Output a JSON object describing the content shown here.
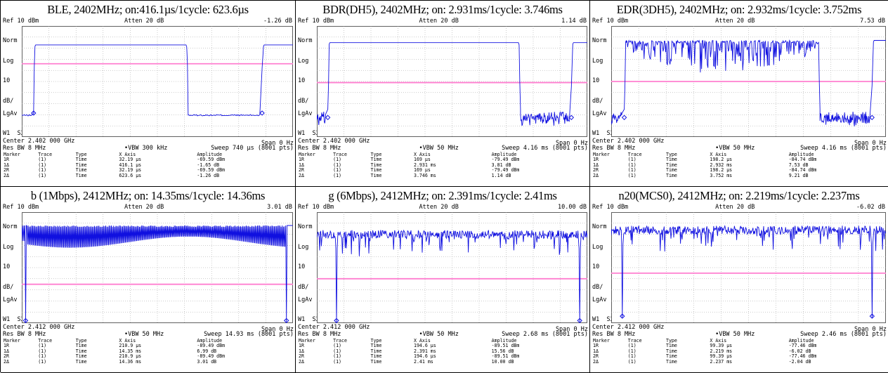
{
  "panels": [
    {
      "caption": "BLE, 2402MHz; on:416.1µs/1cycle: 623.6µs",
      "ref_level": "Ref 10 dBm",
      "atten": "Atten 20 dB",
      "marker_amp": "-1.26 dB",
      "norm": "Norm",
      "log": "Log",
      "scale_div": "10",
      "scale_unit": "dB/",
      "lgav": "LgAv",
      "w1s2": "W1  S2",
      "center": "Center 2.402 000 GHz",
      "span": "Span 0 Hz",
      "res_bw": "Res BW 8 MHz",
      "vbw": "•VBW 300 kHz",
      "sweep": "Sweep 740 µs (8001 pts)",
      "table_header": [
        "Marker",
        "Trace",
        "Type",
        "X Axis",
        "Amplitude"
      ],
      "markers": [
        [
          "1R",
          "(1)",
          "Time",
          "32.19 µs",
          "-69.59 dBm"
        ],
        [
          "1Δ",
          "(1)",
          "Time",
          "416.1 µs",
          "-1.65 dB"
        ],
        [
          "2R",
          "(1)",
          "Time",
          "32.19 µs",
          "-69.59 dBm"
        ],
        [
          "2Δ",
          "(1)",
          "Time",
          "623.6 µs",
          "-1.26 dB"
        ]
      ],
      "chart_data": {
        "type": "line",
        "signal": "burst",
        "x_unit": "µs",
        "x_range": [
          0,
          740
        ],
        "y_unit": "dBm",
        "y_range": [
          -90,
          10
        ],
        "on_time": 416.1,
        "cycle": 623.6,
        "first_edge": 32.19,
        "on_level": -7,
        "off_level": -71,
        "threshold_level": -24,
        "off_noise": 2
      }
    },
    {
      "caption": "BDR(DH5), 2402MHz; on: 2.931ms/1cycle: 3.746ms",
      "ref_level": "Ref 10 dBm",
      "atten": "Atten 20 dB",
      "marker_amp": "1.14 dB",
      "norm": "Norm",
      "log": "Log",
      "scale_div": "10",
      "scale_unit": "dB/",
      "lgav": "LgAv",
      "w1s2": "W1  S2",
      "center": "Center 2.402 000 GHz",
      "span": "Span 0 Hz",
      "res_bw": "Res BW 8 MHz",
      "vbw": "•VBW 50 MHz",
      "sweep": "Sweep 4.16 ms (8001 pts)",
      "table_header": [
        "Marker",
        "Trace",
        "Type",
        "X Axis",
        "Amplitude"
      ],
      "markers": [
        [
          "1R",
          "(1)",
          "Time",
          "169 µs",
          "-79.49 dBm"
        ],
        [
          "1Δ",
          "(1)",
          "Time",
          "2.931 ms",
          "3.81 dB"
        ],
        [
          "2R",
          "(1)",
          "Time",
          "169 µs",
          "-79.49 dBm"
        ],
        [
          "2Δ",
          "(1)",
          "Time",
          "3.746 ms",
          "1.14 dB"
        ]
      ],
      "chart_data": {
        "type": "line",
        "signal": "burst",
        "x_unit": "ms",
        "x_range": [
          0,
          4.16
        ],
        "y_unit": "dBm",
        "y_range": [
          -90,
          10
        ],
        "on_time": 2.931,
        "cycle": 3.746,
        "first_edge": 0.169,
        "on_level": -5,
        "off_level": -75,
        "threshold_level": -41,
        "off_noise": 10
      }
    },
    {
      "caption": "EDR(3DH5), 2402MHz; on: 2.932ms/1cycle: 3.752ms",
      "ref_level": "Ref 10 dBm",
      "atten": "Atten 20 dB",
      "marker_amp": "7.53 dB",
      "norm": "Norm",
      "log": "Log",
      "scale_div": "10",
      "scale_unit": "dB/",
      "lgav": "LgAv",
      "w1s2": "W1  S2",
      "center": "Center 2.402 000 GHz",
      "span": "Span 0 Hz",
      "res_bw": "Res BW 8 MHz",
      "vbw": "•VBW 50 MHz",
      "sweep": "Sweep 4.16 ms (8001 pts)",
      "table_header": [
        "Marker",
        "Trace",
        "Type",
        "X Axis",
        "Amplitude"
      ],
      "markers": [
        [
          "1R",
          "(1)",
          "Time",
          "198.2 µs",
          "-84.74 dBm"
        ],
        [
          "1Δ",
          "(1)",
          "Time",
          "2.932 ms",
          "7.53 dB"
        ],
        [
          "2R",
          "(1)",
          "Time",
          "198.2 µs",
          "-84.74 dBm"
        ],
        [
          "2Δ",
          "(1)",
          "Time",
          "3.752 ms",
          "9.21 dB"
        ]
      ],
      "chart_data": {
        "type": "line",
        "signal": "burst-noisy",
        "x_unit": "ms",
        "x_range": [
          0,
          4.16
        ],
        "y_unit": "dBm",
        "y_range": [
          -90,
          10
        ],
        "on_time": 2.932,
        "cycle": 3.752,
        "first_edge": 0.198,
        "on_level": -3,
        "off_level": -75,
        "threshold_level": -40,
        "off_noise": 10
      }
    },
    {
      "caption": "b (1Mbps), 2412MHz; on: 14.35ms/1cycle: 14.36ms",
      "ref_level": "Ref 10 dBm",
      "atten": "Atten 20 dB",
      "marker_amp": "3.01 dB",
      "norm": "Norm",
      "log": "Log",
      "scale_div": "10",
      "scale_unit": "dB/",
      "lgav": "LgAv",
      "w1s2": "W1  S2",
      "center": "Center 2.412 000 GHz",
      "span": "Span 0 Hz",
      "res_bw": "Res BW 8 MHz",
      "vbw": "•VBW 50 MHz",
      "sweep": "Sweep 14.93 ms (8001 pts)",
      "table_header": [
        "Marker",
        "Trace",
        "Type",
        "X Axis",
        "Amplitude"
      ],
      "markers": [
        [
          "1R",
          "(1)",
          "Time",
          "210.9 µs",
          "-89.49 dBm"
        ],
        [
          "1Δ",
          "(1)",
          "Time",
          "14.35 ms",
          "6.99 dB"
        ],
        [
          "2R",
          "(1)",
          "Time",
          "210.9 µs",
          "-89.49 dBm"
        ],
        [
          "2Δ",
          "(1)",
          "Time",
          "14.36 ms",
          "3.01 dB"
        ]
      ],
      "chart_data": {
        "type": "line",
        "signal": "continuous-band",
        "x_unit": "ms",
        "x_range": [
          0,
          14.93
        ],
        "y_unit": "dBm",
        "y_range": [
          -90,
          10
        ],
        "on_time": 14.35,
        "cycle": 14.36,
        "first_edge": 0.2109,
        "on_level": -5,
        "off_level": -89,
        "threshold_level": -55,
        "band_top": -2,
        "band_bottom": -22
      }
    },
    {
      "caption": "g (6Mbps), 2412MHz; on: 2.391ms/1cycle: 2.41ms",
      "ref_level": "Ref 10 dBm",
      "atten": "Atten 20 dB",
      "marker_amp": "10.00 dB",
      "norm": "Norm",
      "log": "Log",
      "scale_div": "10",
      "scale_unit": "dB/",
      "lgav": "LgAv",
      "w1s2": "W1  S2",
      "center": "Center 2.412 000 GHz",
      "span": "Span 0 Hz",
      "res_bw": "Res BW 8 MHz",
      "vbw": "•VBW 50 MHz",
      "sweep": "Sweep 2.68 ms (8001 pts)",
      "table_header": [
        "Marker",
        "Trace",
        "Type",
        "X Axis",
        "Amplitude"
      ],
      "markers": [
        [
          "1R",
          "(1)",
          "Time",
          "194.6 µs",
          "-89.51 dBm"
        ],
        [
          "1Δ",
          "(1)",
          "Time",
          "2.391 ms",
          "15.56 dB"
        ],
        [
          "2R",
          "(1)",
          "Time",
          "194.6 µs",
          "-89.51 dBm"
        ],
        [
          "2Δ",
          "(1)",
          "Time",
          "2.41 ms",
          "10.00 dB"
        ]
      ],
      "chart_data": {
        "type": "line",
        "signal": "continuous-noisy",
        "x_unit": "ms",
        "x_range": [
          0,
          2.68
        ],
        "y_unit": "dBm",
        "y_range": [
          -90,
          10
        ],
        "on_time": 2.391,
        "cycle": 2.41,
        "first_edge": 0.1946,
        "on_level": -10,
        "off_level": -89,
        "threshold_level": -50
      }
    },
    {
      "caption": "n20(MCS0), 2412MHz; on: 2.219ms/1cycle: 2.237ms",
      "ref_level": "Ref 10 dBm",
      "atten": "Atten 20 dB",
      "marker_amp": "-6.02 dB",
      "norm": "Norm",
      "log": "Log",
      "scale_div": "10",
      "scale_unit": "dB/",
      "lgav": "LgAv",
      "w1s2": "W1  S2",
      "center": "Center 2.412 000 GHz",
      "span": "Span 0 Hz",
      "res_bw": "Res BW 8 MHz",
      "vbw": "•VBW 50 MHz",
      "sweep": "Sweep 2.46 ms (8001 pts)",
      "table_header": [
        "Marker",
        "Trace",
        "Type",
        "X Axis",
        "Amplitude"
      ],
      "markers": [
        [
          "1R",
          "(1)",
          "Time",
          "99.39 µs",
          "-77.46 dBm"
        ],
        [
          "1Δ",
          "(1)",
          "Time",
          "2.219 ms",
          "-6.02 dB"
        ],
        [
          "2R",
          "(1)",
          "Time",
          "99.39 µs",
          "-77.46 dBm"
        ],
        [
          "2Δ",
          "(1)",
          "Time",
          "2.237 ms",
          "-2.04 dB"
        ]
      ],
      "chart_data": {
        "type": "line",
        "signal": "continuous-noisy",
        "x_unit": "ms",
        "x_range": [
          0,
          2.46
        ],
        "y_unit": "dBm",
        "y_range": [
          -90,
          10
        ],
        "on_time": 2.219,
        "cycle": 2.237,
        "first_edge": 0.0994,
        "on_level": -6,
        "off_level": -85,
        "threshold_level": -45
      }
    }
  ],
  "colors": {
    "trace": "#1010e0",
    "threshold": "#ff7fd0",
    "grid": "#9a9a9a",
    "screen_bg": "#ffffff"
  }
}
